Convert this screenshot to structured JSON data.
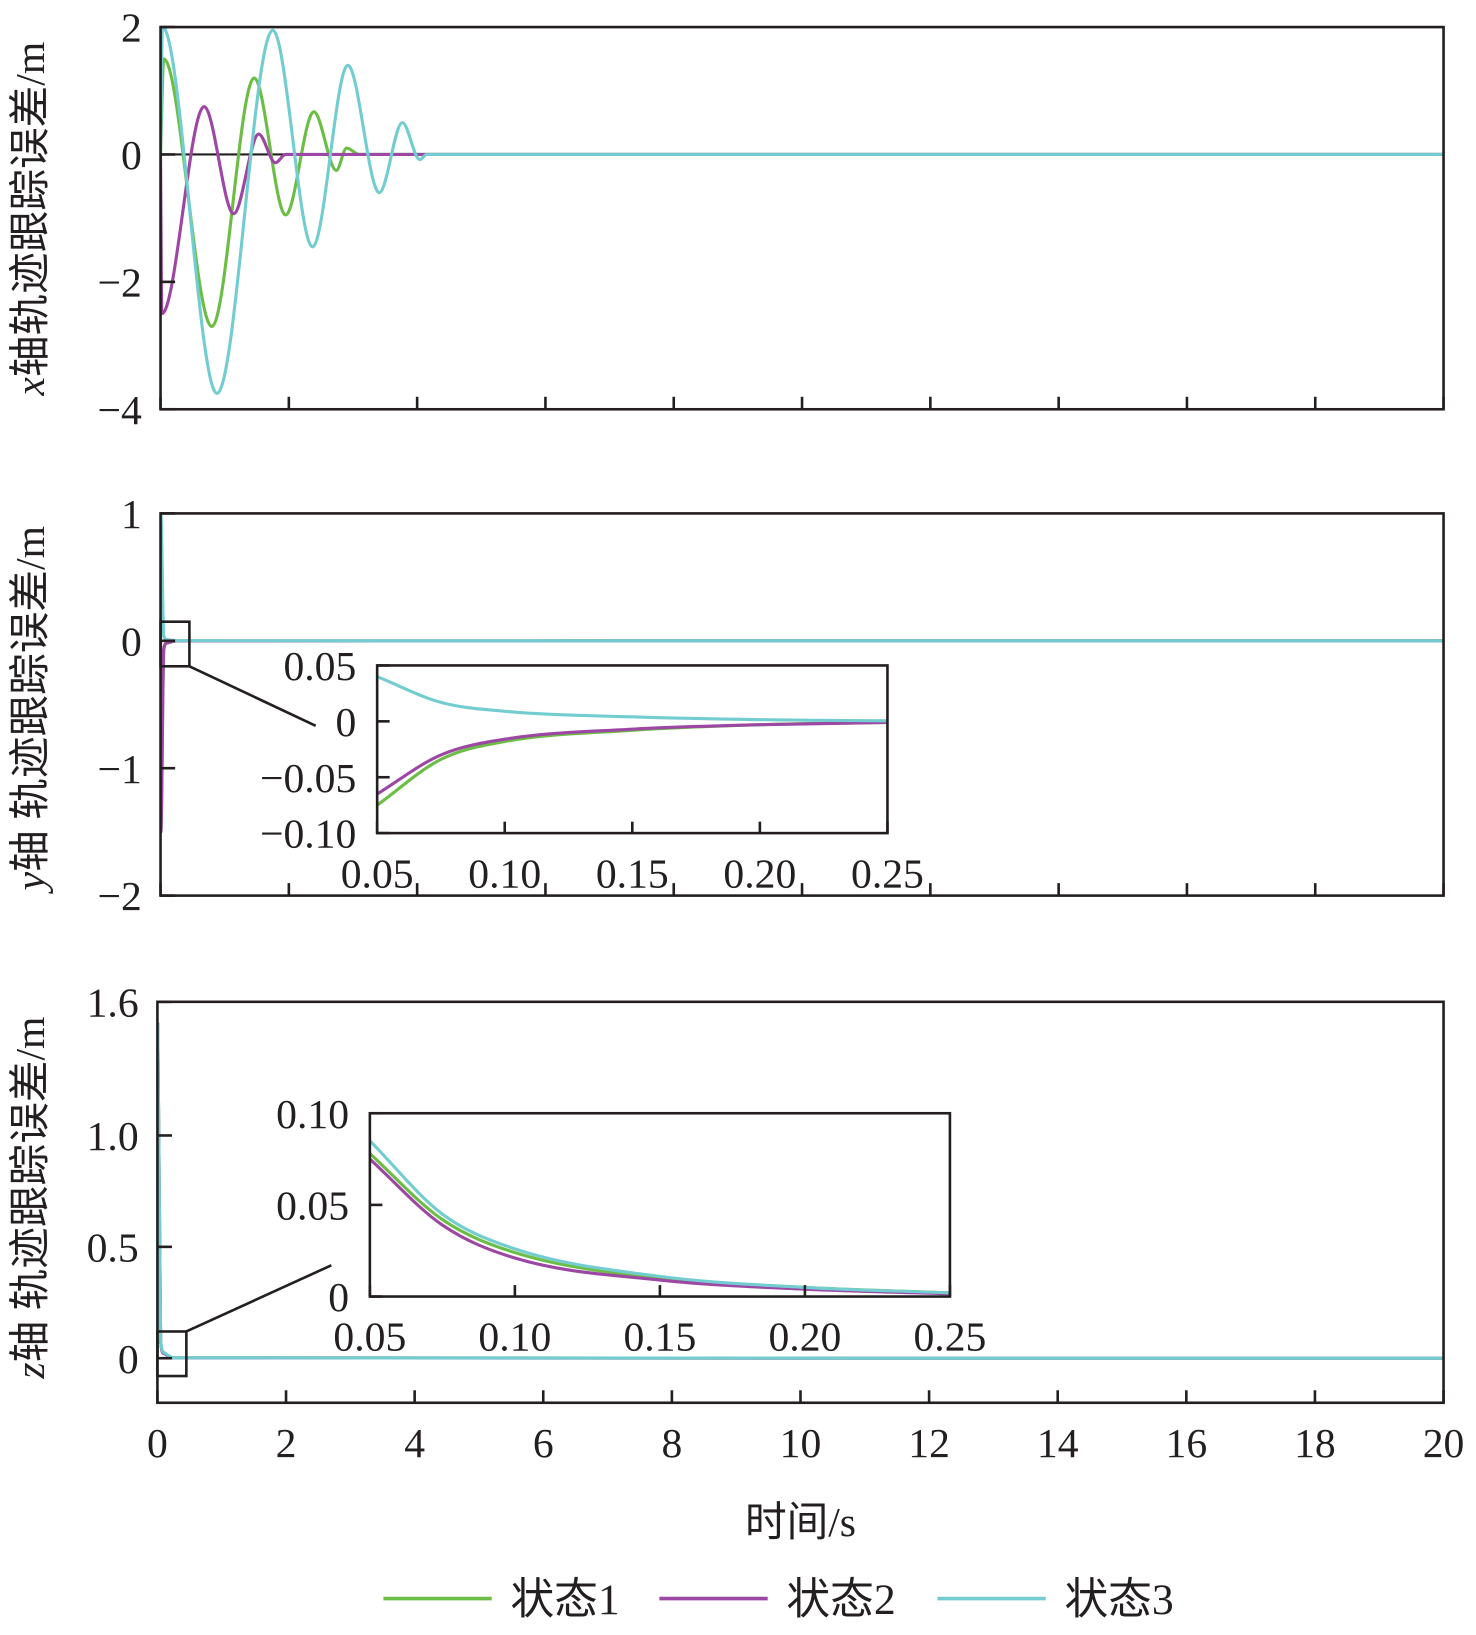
{
  "colors": {
    "state1": "#6cbd45",
    "state2": "#9c47a3",
    "state3": "#73cdd0",
    "axis": "#231f20"
  },
  "legend": [
    {
      "label": "状态1",
      "color": "#6cbd45"
    },
    {
      "label": "状态2",
      "color": "#9c47a3"
    },
    {
      "label": "状态3",
      "color": "#73cdd0"
    }
  ],
  "chart_data": [
    {
      "type": "line",
      "ylabel_var": "x",
      "ylabel": "轴轨迹跟踪误差/m",
      "xlim": [
        0,
        20
      ],
      "ylim": [
        -4,
        2
      ],
      "xticks": [
        0,
        2,
        4,
        6,
        8,
        10,
        12,
        14,
        16,
        18,
        20
      ],
      "yticks": [
        {
          "v": -4,
          "label": "−4"
        },
        {
          "v": -2,
          "label": "−2"
        },
        {
          "v": 0,
          "label": "0"
        },
        {
          "v": 2,
          "label": "2"
        }
      ],
      "show_xtick_labels": false,
      "series": [
        {
          "name": "状态1",
          "x": [
            0,
            0.05,
            0.8,
            1.46,
            1.95,
            2.39,
            2.74,
            2.9,
            3.1,
            20
          ],
          "y": [
            0,
            1.5,
            -2.7,
            1.2,
            -0.95,
            0.67,
            -0.25,
            0.1,
            0,
            0
          ]
        },
        {
          "name": "状态2",
          "x": [
            0,
            0.02,
            0.68,
            1.14,
            1.53,
            1.79,
            1.95,
            20
          ],
          "y": [
            0,
            -2.5,
            0.75,
            -0.93,
            0.32,
            -0.13,
            0,
            0
          ]
        },
        {
          "name": "状态3",
          "x": [
            0,
            0.03,
            0.88,
            1.75,
            2.37,
            2.92,
            3.41,
            3.77,
            4.04,
            4.15,
            20
          ],
          "y": [
            0,
            2.0,
            -3.75,
            1.95,
            -1.45,
            1.4,
            -0.6,
            0.5,
            -0.08,
            0,
            0
          ]
        }
      ]
    },
    {
      "type": "line",
      "ylabel_var": "y",
      "ylabel": "轴 轨迹跟踪误差/m",
      "xlim": [
        0,
        20
      ],
      "ylim": [
        -2,
        1
      ],
      "xticks": [
        0,
        2,
        4,
        6,
        8,
        10,
        12,
        14,
        16,
        18,
        20
      ],
      "yticks": [
        {
          "v": -2,
          "label": "−2"
        },
        {
          "v": -1,
          "label": "−1"
        },
        {
          "v": 0,
          "label": "0"
        },
        {
          "v": 1,
          "label": "1"
        }
      ],
      "show_xtick_labels": false,
      "series": [
        {
          "name": "状态1",
          "x": [
            0,
            0.005,
            0.05,
            0.1,
            0.25,
            20
          ],
          "y": [
            0,
            -1.5,
            -0.075,
            -0.018,
            -0.001,
            0
          ]
        },
        {
          "name": "状态2",
          "x": [
            0,
            0.005,
            0.05,
            0.1,
            0.25,
            20
          ],
          "y": [
            0,
            -1.5,
            -0.065,
            -0.016,
            -0.001,
            0
          ]
        },
        {
          "name": "状态3",
          "x": [
            0,
            0.005,
            0.05,
            0.1,
            0.25,
            20
          ],
          "y": [
            0,
            1.0,
            0.04,
            0.009,
            0.0005,
            0
          ]
        }
      ],
      "zoom_region": {
        "x": [
          0,
          0.45
        ],
        "y": [
          -0.2,
          0.15
        ]
      },
      "inset": {
        "xlim": [
          0.05,
          0.25
        ],
        "ylim": [
          -0.1,
          0.05
        ],
        "xticks": [
          {
            "v": 0.05,
            "label": "0.05"
          },
          {
            "v": 0.1,
            "label": "0.10"
          },
          {
            "v": 0.15,
            "label": "0.15"
          },
          {
            "v": 0.2,
            "label": "0.20"
          },
          {
            "v": 0.25,
            "label": "0.25"
          }
        ],
        "yticks": [
          {
            "v": -0.1,
            "label": "−0.10"
          },
          {
            "v": -0.05,
            "label": "−0.05"
          },
          {
            "v": 0,
            "label": "0"
          },
          {
            "v": 0.05,
            "label": "0.05"
          }
        ],
        "series": [
          {
            "name": "状态1",
            "x": [
              0.05,
              0.075,
              0.1,
              0.15,
              0.2,
              0.25
            ],
            "y": [
              -0.075,
              -0.034,
              -0.018,
              -0.008,
              -0.003,
              -0.001
            ]
          },
          {
            "name": "状态2",
            "x": [
              0.05,
              0.075,
              0.1,
              0.15,
              0.2,
              0.25
            ],
            "y": [
              -0.065,
              -0.03,
              -0.016,
              -0.007,
              -0.003,
              -0.001
            ]
          },
          {
            "name": "状态3",
            "x": [
              0.05,
              0.075,
              0.1,
              0.15,
              0.2,
              0.25
            ],
            "y": [
              0.04,
              0.017,
              0.009,
              0.004,
              0.0015,
              0.0005
            ]
          }
        ]
      }
    },
    {
      "type": "line",
      "ylabel_var": "z",
      "ylabel": "轴 轨迹跟踪误差/m",
      "xlabel": "时间/s",
      "xlim": [
        0,
        20
      ],
      "ylim": [
        -0.2,
        1.6
      ],
      "xticks": [
        0,
        2,
        4,
        6,
        8,
        10,
        12,
        14,
        16,
        18,
        20
      ],
      "xtick_labels": [
        "0",
        "2",
        "4",
        "6",
        "8",
        "10",
        "12",
        "14",
        "16",
        "18",
        "20"
      ],
      "yticks": [
        {
          "v": 0,
          "label": "0"
        },
        {
          "v": 0.5,
          "label": "0.5"
        },
        {
          "v": 1.0,
          "label": "1.0"
        },
        {
          "v": 1.6,
          "label": "1.6"
        }
      ],
      "show_xtick_labels": true,
      "series": [
        {
          "name": "状态1",
          "x": [
            0,
            0.005,
            0.05,
            0.1,
            0.25,
            20
          ],
          "y": [
            0,
            1.5,
            0.078,
            0.024,
            0.002,
            0
          ]
        },
        {
          "name": "状态2",
          "x": [
            0,
            0.005,
            0.05,
            0.1,
            0.25,
            20
          ],
          "y": [
            0,
            1.5,
            0.075,
            0.021,
            0.0015,
            0
          ]
        },
        {
          "name": "状态3",
          "x": [
            0,
            0.005,
            0.05,
            0.1,
            0.25,
            20
          ],
          "y": [
            0,
            1.5,
            0.085,
            0.026,
            0.002,
            0
          ]
        }
      ],
      "zoom_region": {
        "x": [
          0,
          0.45
        ],
        "y": [
          -0.08,
          0.12
        ]
      },
      "inset": {
        "xlim": [
          0.05,
          0.25
        ],
        "ylim": [
          0,
          0.1
        ],
        "xticks": [
          {
            "v": 0.05,
            "label": "0.05"
          },
          {
            "v": 0.1,
            "label": "0.10"
          },
          {
            "v": 0.15,
            "label": "0.15"
          },
          {
            "v": 0.2,
            "label": "0.20"
          },
          {
            "v": 0.25,
            "label": "0.25"
          }
        ],
        "yticks": [
          {
            "v": 0,
            "label": "0"
          },
          {
            "v": 0.05,
            "label": "0.05"
          },
          {
            "v": 0.1,
            "label": "0.10"
          }
        ],
        "series": [
          {
            "name": "状态1",
            "x": [
              0.05,
              0.075,
              0.1,
              0.15,
              0.2,
              0.25
            ],
            "y": [
              0.078,
              0.042,
              0.024,
              0.01,
              0.005,
              0.002
            ]
          },
          {
            "name": "状态2",
            "x": [
              0.05,
              0.075,
              0.1,
              0.15,
              0.2,
              0.25
            ],
            "y": [
              0.075,
              0.039,
              0.021,
              0.009,
              0.004,
              0.0015
            ]
          },
          {
            "name": "状态3",
            "x": [
              0.05,
              0.075,
              0.1,
              0.15,
              0.2,
              0.25
            ],
            "y": [
              0.085,
              0.045,
              0.026,
              0.011,
              0.005,
              0.002
            ]
          }
        ]
      }
    }
  ]
}
